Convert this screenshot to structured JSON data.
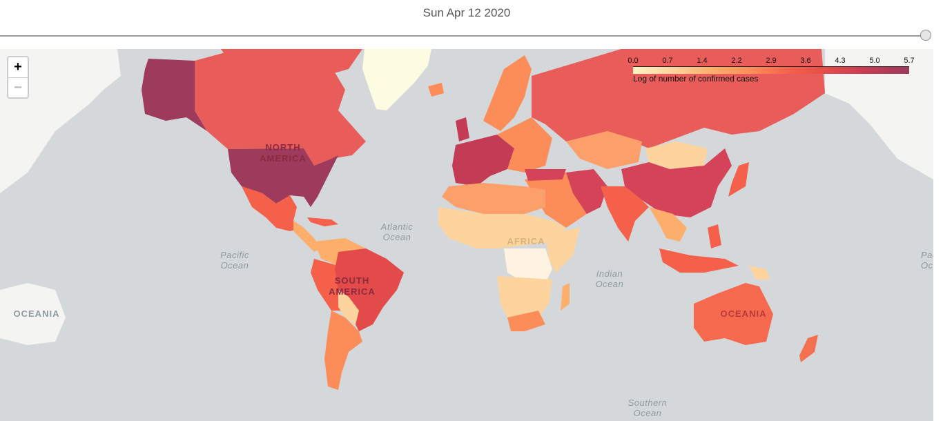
{
  "date": "Sun Apr 12 2020",
  "zoom": {
    "in_label": "+",
    "out_label": "−"
  },
  "legend": {
    "ticks": [
      "0.0",
      "0.7",
      "1.4",
      "2.2",
      "2.9",
      "3.6",
      "4.3",
      "5.0",
      "5.7"
    ],
    "title": "Log of number of confirmed cases",
    "colors": [
      "#fff3c4",
      "#fdd49e",
      "#fdae6b",
      "#fc8d59",
      "#f4604a",
      "#e34a4a",
      "#c43b55",
      "#9e3a5c"
    ]
  },
  "ocean_labels": [
    {
      "name": "Atlantic\nOcean"
    },
    {
      "name": "Pacific\nOcean"
    },
    {
      "name": "Indian\nOcean"
    },
    {
      "name": "Southern\nOcean"
    },
    {
      "name": "Pac\nOce"
    }
  ],
  "continent_labels": {
    "north_america": "NORTH\nAMERICA",
    "south_america": "SOUTH\nAMERICA",
    "africa": "AFRICA",
    "oceania_east": "OCEANIA",
    "oceania_west": "OCEANIA"
  }
}
